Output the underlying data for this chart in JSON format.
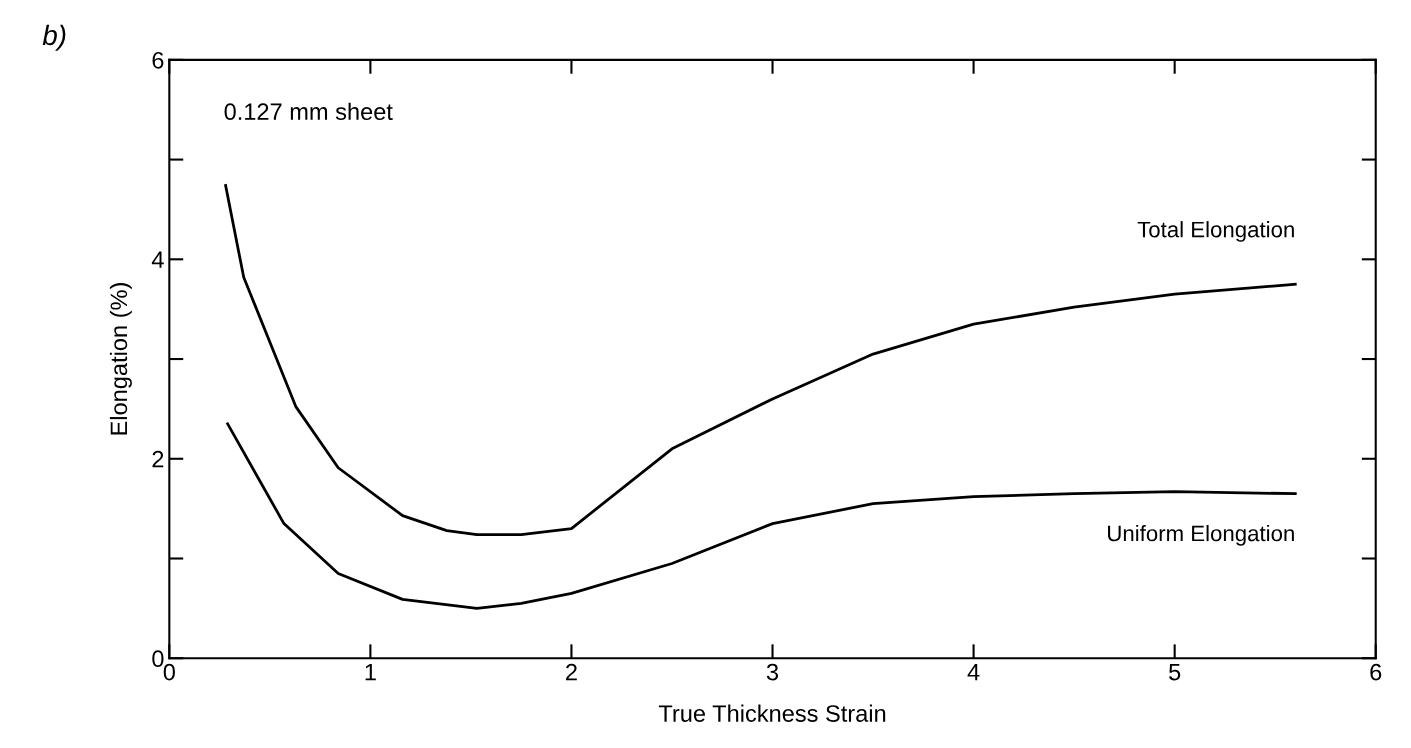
{
  "chart_data": {
    "type": "line",
    "xlabel": "True Thickness Strain",
    "ylabel": "Elongation (%)",
    "xlim": [
      0,
      6
    ],
    "ylim": [
      0,
      6
    ],
    "xticks": [
      0,
      1,
      2,
      3,
      4,
      5,
      6
    ],
    "yticks": [
      0,
      {
        "value": 1,
        "label": null
      },
      2,
      {
        "value": 3,
        "label": null
      },
      4,
      {
        "value": 5,
        "label": null
      },
      6
    ],
    "grid": false,
    "marker": "none",
    "line_style": "solid",
    "annotations": [
      "b)",
      "0.127 mm sheet"
    ],
    "series": [
      {
        "name": "Total Elongation",
        "color": "#000000",
        "x": [
          0.28,
          0.37,
          0.63,
          0.84,
          1.16,
          1.38,
          1.53,
          1.75,
          2.0,
          2.5,
          3.0,
          3.5,
          4.0,
          4.5,
          5.0,
          5.6
        ],
        "values": [
          4.74,
          3.82,
          2.52,
          1.91,
          1.43,
          1.28,
          1.24,
          1.24,
          1.3,
          2.1,
          2.6,
          3.05,
          3.35,
          3.52,
          3.65,
          3.75
        ]
      },
      {
        "name": "Uniform Elongation",
        "color": "#000000",
        "x": [
          0.29,
          0.57,
          0.84,
          1.16,
          1.53,
          1.75,
          2.0,
          2.5,
          3.0,
          3.5,
          4.0,
          4.5,
          5.0,
          5.6
        ],
        "values": [
          2.35,
          1.35,
          0.85,
          0.59,
          0.5,
          0.55,
          0.65,
          0.95,
          1.35,
          1.55,
          1.62,
          1.65,
          1.67,
          1.65
        ]
      }
    ]
  }
}
